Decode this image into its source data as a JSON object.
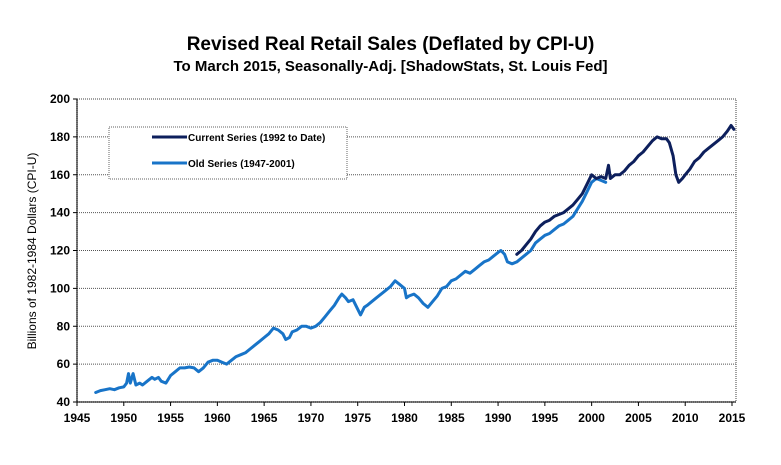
{
  "chart_data": {
    "type": "line",
    "title": "Revised Real Retail Sales (Deflated by CPI-U)",
    "subtitle": "To March 2015, Seasonally-Adj. [ShadowStats, St. Louis Fed]",
    "xlabel": "",
    "ylabel": "Billions of 1982-1984 Dollars (CPI-U)",
    "xlim": [
      1945,
      2015.5
    ],
    "ylim": [
      40,
      200
    ],
    "x_ticks": [
      "1945",
      "1950",
      "1955",
      "1960",
      "1965",
      "1970",
      "1975",
      "1980",
      "1985",
      "1990",
      "1995",
      "2000",
      "2005",
      "2010",
      "2015"
    ],
    "y_ticks": [
      "40",
      "60",
      "80",
      "100",
      "120",
      "140",
      "160",
      "180",
      "200"
    ],
    "grid": "horizontal",
    "legend": {
      "placement": "top-left",
      "entries": [
        {
          "name": "Current Series (1992 to Date)",
          "color": "#0d1f5c"
        },
        {
          "name": "Old Series (1947-2001)",
          "color": "#1874c8"
        }
      ]
    },
    "series": [
      {
        "name": "Old Series (1947-2001)",
        "color": "#1874c8",
        "points": [
          [
            1947.0,
            45
          ],
          [
            1947.5,
            46
          ],
          [
            1948.0,
            46.5
          ],
          [
            1948.5,
            47
          ],
          [
            1949.0,
            46.5
          ],
          [
            1949.5,
            47.5
          ],
          [
            1950.0,
            48
          ],
          [
            1950.3,
            50
          ],
          [
            1950.5,
            55
          ],
          [
            1950.7,
            50
          ],
          [
            1951.0,
            55
          ],
          [
            1951.3,
            49
          ],
          [
            1951.7,
            50
          ],
          [
            1952.0,
            49
          ],
          [
            1952.5,
            51
          ],
          [
            1953.0,
            53
          ],
          [
            1953.3,
            52
          ],
          [
            1953.7,
            53
          ],
          [
            1954.0,
            51
          ],
          [
            1954.5,
            50
          ],
          [
            1955.0,
            54
          ],
          [
            1955.5,
            56
          ],
          [
            1956.0,
            58
          ],
          [
            1956.5,
            58
          ],
          [
            1957.0,
            58.5
          ],
          [
            1957.5,
            58
          ],
          [
            1958.0,
            56
          ],
          [
            1958.5,
            58
          ],
          [
            1959.0,
            61
          ],
          [
            1959.5,
            62
          ],
          [
            1960.0,
            62
          ],
          [
            1960.5,
            61
          ],
          [
            1961.0,
            60
          ],
          [
            1961.5,
            62
          ],
          [
            1962.0,
            64
          ],
          [
            1962.5,
            65
          ],
          [
            1963.0,
            66
          ],
          [
            1963.5,
            68
          ],
          [
            1964.0,
            70
          ],
          [
            1964.5,
            72
          ],
          [
            1965.0,
            74
          ],
          [
            1965.5,
            76
          ],
          [
            1966.0,
            79
          ],
          [
            1966.5,
            78
          ],
          [
            1967.0,
            76
          ],
          [
            1967.3,
            73
          ],
          [
            1967.7,
            74
          ],
          [
            1968.0,
            77
          ],
          [
            1968.5,
            78
          ],
          [
            1969.0,
            80
          ],
          [
            1969.5,
            80
          ],
          [
            1970.0,
            79
          ],
          [
            1970.5,
            80
          ],
          [
            1971.0,
            82
          ],
          [
            1971.5,
            85
          ],
          [
            1972.0,
            88
          ],
          [
            1972.5,
            91
          ],
          [
            1973.0,
            95
          ],
          [
            1973.3,
            97
          ],
          [
            1973.7,
            95
          ],
          [
            1974.0,
            93
          ],
          [
            1974.5,
            94
          ],
          [
            1975.0,
            89
          ],
          [
            1975.3,
            86
          ],
          [
            1975.7,
            90
          ],
          [
            1976.0,
            91
          ],
          [
            1976.5,
            93
          ],
          [
            1977.0,
            95
          ],
          [
            1977.5,
            97
          ],
          [
            1978.0,
            99
          ],
          [
            1978.5,
            101
          ],
          [
            1979.0,
            104
          ],
          [
            1979.5,
            102
          ],
          [
            1980.0,
            100
          ],
          [
            1980.2,
            95
          ],
          [
            1980.5,
            96
          ],
          [
            1981.0,
            97
          ],
          [
            1981.5,
            95
          ],
          [
            1982.0,
            92
          ],
          [
            1982.5,
            90
          ],
          [
            1983.0,
            93
          ],
          [
            1983.5,
            96
          ],
          [
            1984.0,
            100
          ],
          [
            1984.5,
            101
          ],
          [
            1985.0,
            104
          ],
          [
            1985.5,
            105
          ],
          [
            1986.0,
            107
          ],
          [
            1986.5,
            109
          ],
          [
            1987.0,
            108
          ],
          [
            1987.5,
            110
          ],
          [
            1988.0,
            112
          ],
          [
            1988.5,
            114
          ],
          [
            1989.0,
            115
          ],
          [
            1989.5,
            117
          ],
          [
            1990.0,
            119
          ],
          [
            1990.3,
            120
          ],
          [
            1990.7,
            118
          ],
          [
            1991.0,
            114
          ],
          [
            1991.5,
            113
          ],
          [
            1992.0,
            114
          ],
          [
            1992.5,
            116
          ],
          [
            1993.0,
            118
          ],
          [
            1993.5,
            120
          ],
          [
            1994.0,
            124
          ],
          [
            1994.5,
            126
          ],
          [
            1995.0,
            128
          ],
          [
            1995.5,
            129
          ],
          [
            1996.0,
            131
          ],
          [
            1996.5,
            133
          ],
          [
            1997.0,
            134
          ],
          [
            1997.5,
            136
          ],
          [
            1998.0,
            138
          ],
          [
            1998.5,
            142
          ],
          [
            1999.0,
            146
          ],
          [
            1999.5,
            151
          ],
          [
            2000.0,
            156
          ],
          [
            2000.5,
            158
          ],
          [
            2001.0,
            157
          ],
          [
            2001.5,
            156
          ]
        ]
      },
      {
        "name": "Current Series (1992 to Date)",
        "color": "#0d1f5c",
        "points": [
          [
            1992.0,
            118
          ],
          [
            1992.5,
            120
          ],
          [
            1993.0,
            123
          ],
          [
            1993.5,
            126
          ],
          [
            1994.0,
            130
          ],
          [
            1994.5,
            133
          ],
          [
            1995.0,
            135
          ],
          [
            1995.5,
            136
          ],
          [
            1996.0,
            138
          ],
          [
            1996.5,
            139
          ],
          [
            1997.0,
            140
          ],
          [
            1997.5,
            142
          ],
          [
            1998.0,
            144
          ],
          [
            1998.5,
            147
          ],
          [
            1999.0,
            150
          ],
          [
            1999.5,
            155
          ],
          [
            2000.0,
            160
          ],
          [
            2000.5,
            158
          ],
          [
            2001.0,
            159
          ],
          [
            2001.5,
            158
          ],
          [
            2001.8,
            165
          ],
          [
            2002.0,
            158
          ],
          [
            2002.5,
            160
          ],
          [
            2003.0,
            160
          ],
          [
            2003.5,
            162
          ],
          [
            2004.0,
            165
          ],
          [
            2004.5,
            167
          ],
          [
            2005.0,
            170
          ],
          [
            2005.5,
            172
          ],
          [
            2006.0,
            175
          ],
          [
            2006.5,
            178
          ],
          [
            2007.0,
            180
          ],
          [
            2007.5,
            179
          ],
          [
            2008.0,
            179
          ],
          [
            2008.3,
            177
          ],
          [
            2008.7,
            170
          ],
          [
            2009.0,
            160
          ],
          [
            2009.3,
            156
          ],
          [
            2009.7,
            158
          ],
          [
            2010.0,
            160
          ],
          [
            2010.5,
            163
          ],
          [
            2011.0,
            167
          ],
          [
            2011.5,
            169
          ],
          [
            2012.0,
            172
          ],
          [
            2012.5,
            174
          ],
          [
            2013.0,
            176
          ],
          [
            2013.5,
            178
          ],
          [
            2014.0,
            180
          ],
          [
            2014.5,
            183
          ],
          [
            2014.9,
            186
          ],
          [
            2015.2,
            184
          ]
        ]
      }
    ]
  }
}
